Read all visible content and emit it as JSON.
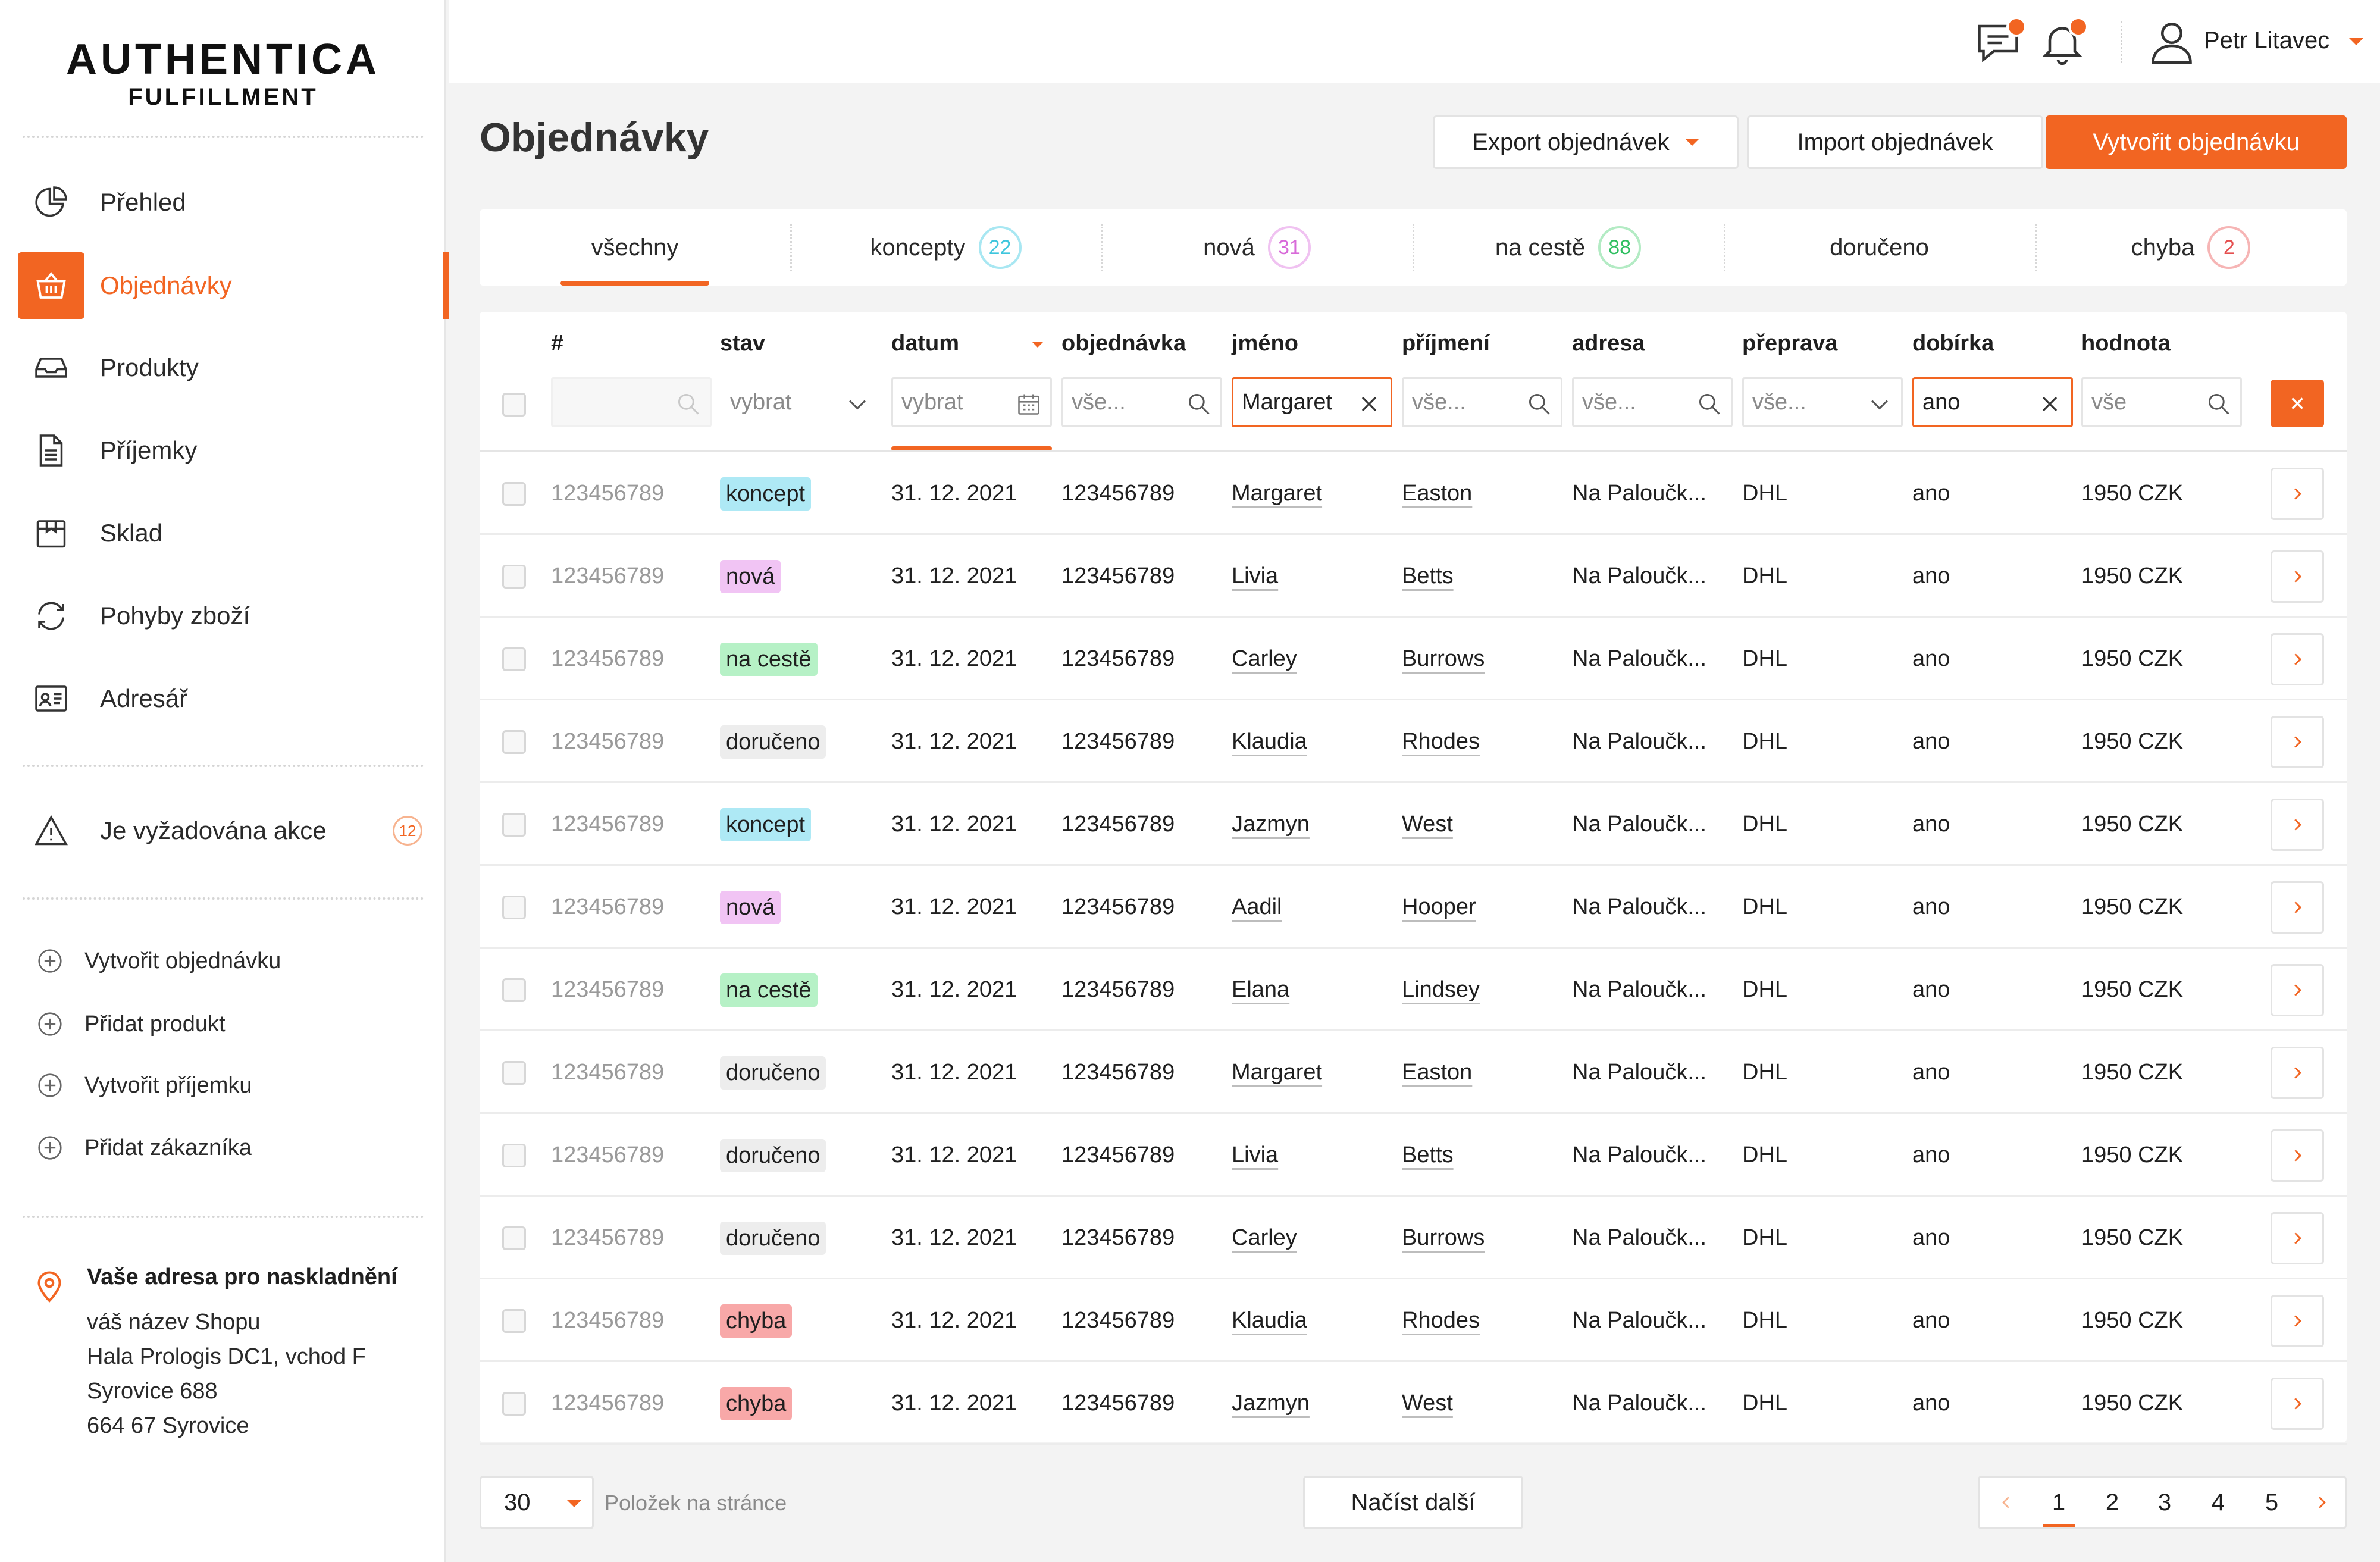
{
  "brand": {
    "line1": "AUTHENTICA",
    "line2": "FULFILLMENT"
  },
  "sidebar": {
    "items": [
      {
        "label": "Přehled",
        "icon": "pie-chart-icon"
      },
      {
        "label": "Objednávky",
        "icon": "basket-icon",
        "active": true
      },
      {
        "label": "Produkty",
        "icon": "inbox-icon"
      },
      {
        "label": "Příjemky",
        "icon": "document-icon"
      },
      {
        "label": "Sklad",
        "icon": "box-icon"
      },
      {
        "label": "Pohyby zboží",
        "icon": "refresh-icon"
      },
      {
        "label": "Adresář",
        "icon": "contact-card-icon"
      }
    ],
    "alert": {
      "label": "Je vyžadována akce",
      "count": "12",
      "icon": "warning-icon"
    },
    "quick_actions": [
      "Vytvořit objednávku",
      "Přidat produkt",
      "Vytvořit příjemku",
      "Přidat zákazníka"
    ],
    "address": {
      "title": "Vaše adresa pro naskladnění",
      "lines": [
        "váš název Shopu",
        "Hala Prologis DC1, vchod F",
        "Syrovice 688",
        "664 67 Syrovice"
      ]
    }
  },
  "topbar": {
    "user_name": "Petr Litavec"
  },
  "page": {
    "title": "Objednávky",
    "buttons": {
      "export": "Export objednávek",
      "import": "Import objednávek",
      "create": "Vytvořit objednávku"
    }
  },
  "tabs": [
    {
      "label": "všechny",
      "count": "",
      "active": true
    },
    {
      "label": "koncepty",
      "count": "22",
      "color": "#5bd3e6"
    },
    {
      "label": "nová",
      "count": "31",
      "color": "#e58be6"
    },
    {
      "label": "na cestě",
      "count": "88",
      "color": "#4ed17a"
    },
    {
      "label": "doručeno",
      "count": ""
    },
    {
      "label": "chyba",
      "count": "2",
      "color": "#f28080"
    }
  ],
  "table": {
    "columns": [
      "#",
      "stav",
      "datum",
      "objednávka",
      "jméno",
      "příjmení",
      "adresa",
      "přeprava",
      "dobírka",
      "hodnota"
    ],
    "filters": {
      "stav": "vybrat",
      "datum": "vybrat",
      "objednavka": "vše...",
      "jmeno": "Margaret",
      "prijmeni": "vše...",
      "adresa": "vše...",
      "preprava": "vše...",
      "dobirka": "ano",
      "hodnota": "vše"
    },
    "status_colors": {
      "koncept": "#aee9f5",
      "nová": "#f1c4f4",
      "na cestě": "#b6f1c6",
      "doručeno": "#ededed",
      "chyba": "#f8a8a8"
    },
    "rows": [
      {
        "id": "123456789",
        "stav": "koncept",
        "datum": "31. 12. 2021",
        "objednavka": "123456789",
        "jmeno": "Margaret",
        "prijmeni": "Easton",
        "adresa": "Na Paloučk...",
        "preprava": "DHL",
        "dobirka": "ano",
        "hodnota": "1950 CZK"
      },
      {
        "id": "123456789",
        "stav": "nová",
        "datum": "31. 12. 2021",
        "objednavka": "123456789",
        "jmeno": "Livia",
        "prijmeni": "Betts",
        "adresa": "Na Paloučk...",
        "preprava": "DHL",
        "dobirka": "ano",
        "hodnota": "1950 CZK"
      },
      {
        "id": "123456789",
        "stav": "na cestě",
        "datum": "31. 12. 2021",
        "objednavka": "123456789",
        "jmeno": "Carley",
        "prijmeni": "Burrows",
        "adresa": "Na Paloučk...",
        "preprava": "DHL",
        "dobirka": "ano",
        "hodnota": "1950 CZK"
      },
      {
        "id": "123456789",
        "stav": "doručeno",
        "datum": "31. 12. 2021",
        "objednavka": "123456789",
        "jmeno": "Klaudia",
        "prijmeni": "Rhodes",
        "adresa": "Na Paloučk...",
        "preprava": "DHL",
        "dobirka": "ano",
        "hodnota": "1950 CZK"
      },
      {
        "id": "123456789",
        "stav": "koncept",
        "datum": "31. 12. 2021",
        "objednavka": "123456789",
        "jmeno": "Jazmyn",
        "prijmeni": "West",
        "adresa": "Na Paloučk...",
        "preprava": "DHL",
        "dobirka": "ano",
        "hodnota": "1950 CZK"
      },
      {
        "id": "123456789",
        "stav": "nová",
        "datum": "31. 12. 2021",
        "objednavka": "123456789",
        "jmeno": "Aadil",
        "prijmeni": "Hooper",
        "adresa": "Na Paloučk...",
        "preprava": "DHL",
        "dobirka": "ano",
        "hodnota": "1950 CZK"
      },
      {
        "id": "123456789",
        "stav": "na cestě",
        "datum": "31. 12. 2021",
        "objednavka": "123456789",
        "jmeno": "Elana",
        "prijmeni": "Lindsey",
        "adresa": "Na Paloučk...",
        "preprava": "DHL",
        "dobirka": "ano",
        "hodnota": "1950 CZK"
      },
      {
        "id": "123456789",
        "stav": "doručeno",
        "datum": "31. 12. 2021",
        "objednavka": "123456789",
        "jmeno": "Margaret",
        "prijmeni": "Easton",
        "adresa": "Na Paloučk...",
        "preprava": "DHL",
        "dobirka": "ano",
        "hodnota": "1950 CZK"
      },
      {
        "id": "123456789",
        "stav": "doručeno",
        "datum": "31. 12. 2021",
        "objednavka": "123456789",
        "jmeno": "Livia",
        "prijmeni": "Betts",
        "adresa": "Na Paloučk...",
        "preprava": "DHL",
        "dobirka": "ano",
        "hodnota": "1950 CZK"
      },
      {
        "id": "123456789",
        "stav": "doručeno",
        "datum": "31. 12. 2021",
        "objednavka": "123456789",
        "jmeno": "Carley",
        "prijmeni": "Burrows",
        "adresa": "Na Paloučk...",
        "preprava": "DHL",
        "dobirka": "ano",
        "hodnota": "1950 CZK"
      },
      {
        "id": "123456789",
        "stav": "chyba",
        "datum": "31. 12. 2021",
        "objednavka": "123456789",
        "jmeno": "Klaudia",
        "prijmeni": "Rhodes",
        "adresa": "Na Paloučk...",
        "preprava": "DHL",
        "dobirka": "ano",
        "hodnota": "1950 CZK"
      },
      {
        "id": "123456789",
        "stav": "chyba",
        "datum": "31. 12. 2021",
        "objednavka": "123456789",
        "jmeno": "Jazmyn",
        "prijmeni": "West",
        "adresa": "Na Paloučk...",
        "preprava": "DHL",
        "dobirka": "ano",
        "hodnota": "1950 CZK"
      }
    ]
  },
  "footer": {
    "per_page": "30",
    "per_page_label": "Položek na stránce",
    "load_more": "Načíst další",
    "pages": [
      "1",
      "2",
      "3",
      "4",
      "5"
    ],
    "current_page": "1"
  },
  "colors": {
    "accent": "#f26522"
  }
}
